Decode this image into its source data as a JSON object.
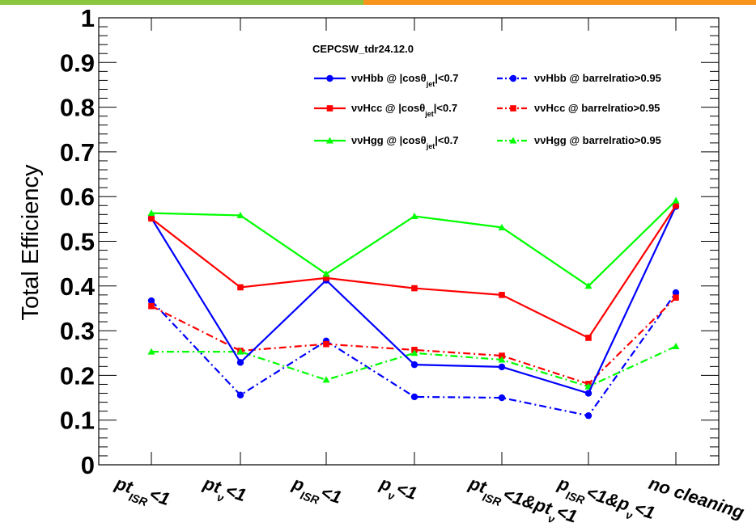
{
  "chart_data": {
    "type": "line",
    "title": "",
    "legend_title": "CEPCSW_tdr24.12.0",
    "ylabel": "Total Efficiency",
    "xlabel": "",
    "ylim": [
      0,
      1
    ],
    "y_ticks": [
      "0",
      "0.1",
      "0.2",
      "0.3",
      "0.4",
      "0.5",
      "0.6",
      "0.7",
      "0.8",
      "0.9",
      "1"
    ],
    "categories": [
      {
        "main": "pt",
        "sub": "ISR",
        "tail": "<1"
      },
      {
        "main": "pt",
        "sub": "ν",
        "tail": "<1"
      },
      {
        "main": "p",
        "sub": "ISR",
        "tail": "<1"
      },
      {
        "main": "p",
        "sub": "ν",
        "tail": "<1"
      },
      {
        "main": "pt",
        "sub": "ISR",
        "tail": "<1&pt",
        "sub2": "ν",
        "tail2": "<1"
      },
      {
        "main": "p",
        "sub": "ISR",
        "tail": "<1&p",
        "sub2": "ν",
        "tail2": "<1"
      },
      {
        "main": "no cleaning",
        "sub": "",
        "tail": ""
      }
    ],
    "grid": false,
    "legend_position": "top-right",
    "series": [
      {
        "name": "ννHbb @ |cosθjet|<0.7",
        "label_pre": "ννHbb @ |cosθ",
        "label_sub": "jet",
        "label_post": "|<0.7",
        "color": "#0000ff",
        "dash": "solid",
        "marker": "circle",
        "values": [
          0.552,
          0.229,
          0.413,
          0.224,
          0.219,
          0.16,
          0.578
        ]
      },
      {
        "name": "ννHcc @ |cosθjet|<0.7",
        "label_pre": "ννHcc @ |cosθ",
        "label_sub": "jet",
        "label_post": "|<0.7",
        "color": "#ff0000",
        "dash": "solid",
        "marker": "square",
        "values": [
          0.551,
          0.397,
          0.418,
          0.395,
          0.38,
          0.284,
          0.58
        ]
      },
      {
        "name": "ννHgg @ |cosθjet|<0.7",
        "label_pre": "ννHgg @ |cosθ",
        "label_sub": "jet",
        "label_post": "|<0.7",
        "color": "#00ff00",
        "dash": "solid",
        "marker": "triangle",
        "values": [
          0.563,
          0.558,
          0.427,
          0.556,
          0.531,
          0.4,
          0.591
        ]
      },
      {
        "name": "ννHbb @ barrelratio>0.95",
        "label_pre": "ννHbb @ barrelratio>0.95",
        "label_sub": "",
        "label_post": "",
        "color": "#0000ff",
        "dash": "dashdot",
        "marker": "circle",
        "values": [
          0.367,
          0.156,
          0.277,
          0.152,
          0.15,
          0.11,
          0.385
        ]
      },
      {
        "name": "ννHcc @ barrelratio>0.95",
        "label_pre": "ννHcc @ barrelratio>0.95",
        "label_sub": "",
        "label_post": "",
        "color": "#ff0000",
        "dash": "dashdot",
        "marker": "square",
        "values": [
          0.355,
          0.255,
          0.27,
          0.257,
          0.244,
          0.181,
          0.374
        ]
      },
      {
        "name": "ννHgg @ barrelratio>0.95",
        "label_pre": "ννHgg @ barrelratio>0.95",
        "label_sub": "",
        "label_post": "",
        "color": "#00ff00",
        "dash": "dashdot",
        "marker": "triangle",
        "values": [
          0.253,
          0.253,
          0.19,
          0.25,
          0.235,
          0.175,
          0.265
        ]
      }
    ]
  },
  "colors": {
    "top_bar_left": "#8cc63f",
    "top_bar_right": "#f7941d"
  }
}
